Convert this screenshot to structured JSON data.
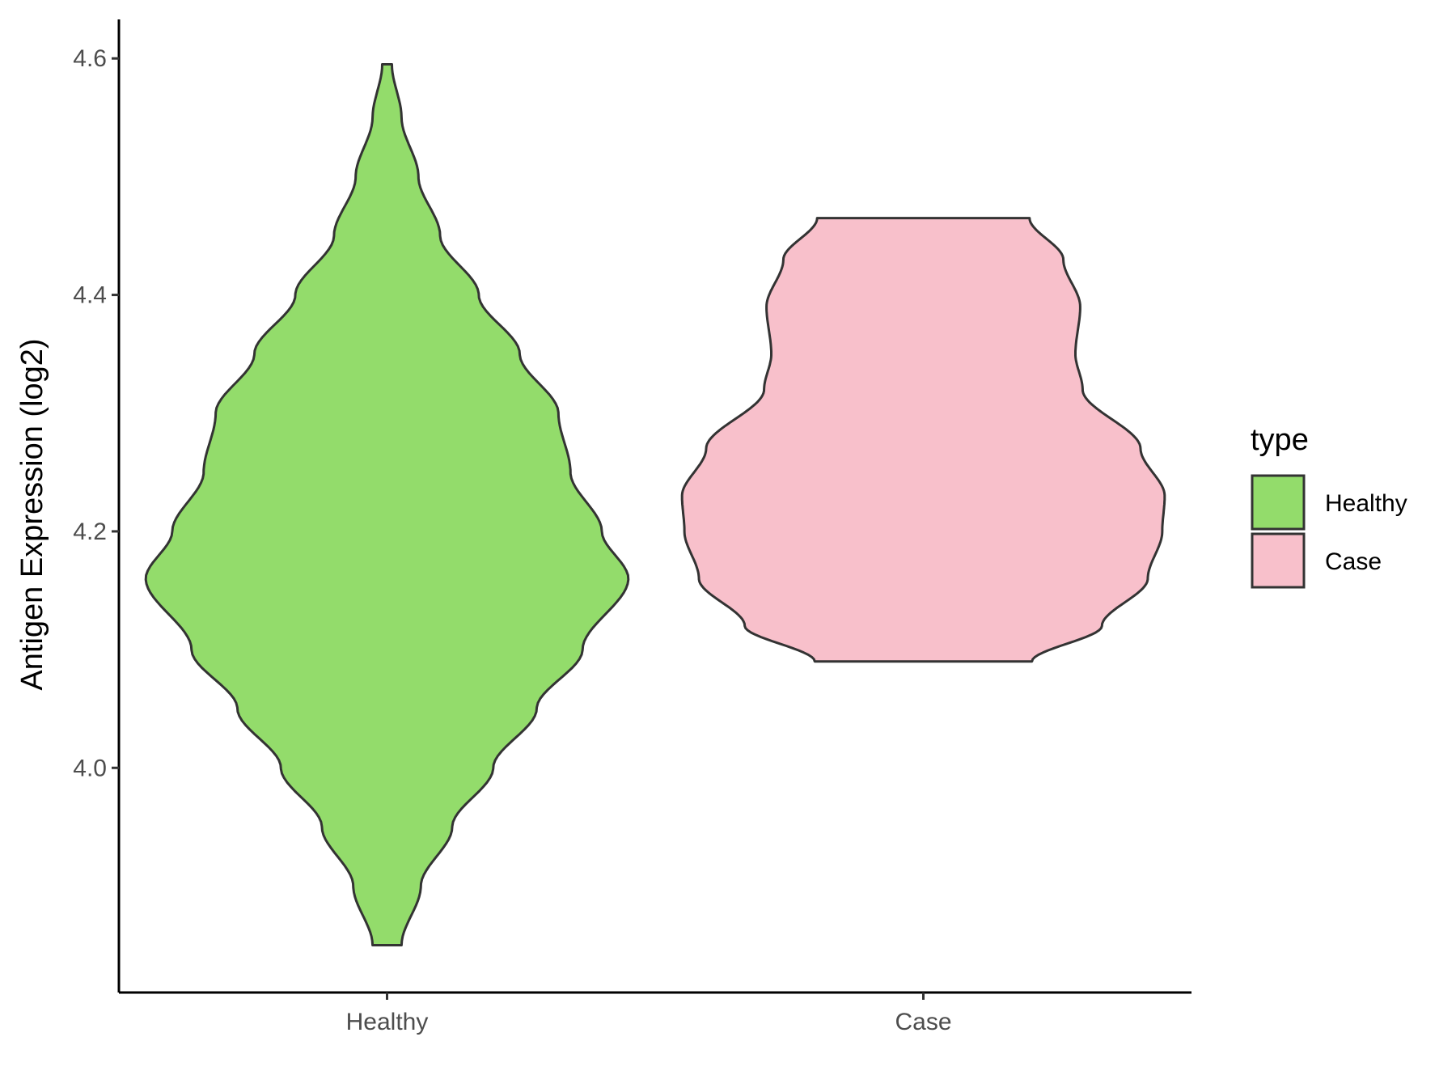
{
  "chart_data": {
    "type": "violin",
    "ylabel": "Antigen Expression (log2)",
    "xlabel": "",
    "categories": [
      "Healthy",
      "Case"
    ],
    "ylim": [
      3.81,
      4.633
    ],
    "yticks": [
      4.0,
      4.2,
      4.4,
      4.6
    ],
    "ytick_labels": [
      "4.0",
      "4.2",
      "4.4",
      "4.6"
    ],
    "grid": false,
    "legend": {
      "title": "type",
      "position": "right",
      "entries": [
        "Healthy",
        "Case"
      ]
    },
    "colors": {
      "Healthy": "#93dc6b",
      "Case": "#f8c0cb",
      "outline": "#333333"
    },
    "series": [
      {
        "name": "Healthy",
        "y_range": [
          3.85,
          4.595
        ],
        "density_profile": [
          [
            3.85,
            0.06
          ],
          [
            3.9,
            0.14
          ],
          [
            3.95,
            0.27
          ],
          [
            4.0,
            0.44
          ],
          [
            4.05,
            0.62
          ],
          [
            4.1,
            0.81
          ],
          [
            4.16,
            1.0
          ],
          [
            4.2,
            0.89
          ],
          [
            4.25,
            0.76
          ],
          [
            4.3,
            0.71
          ],
          [
            4.35,
            0.55
          ],
          [
            4.4,
            0.38
          ],
          [
            4.45,
            0.22
          ],
          [
            4.5,
            0.13
          ],
          [
            4.55,
            0.06
          ],
          [
            4.595,
            0.02
          ]
        ]
      },
      {
        "name": "Case",
        "y_range": [
          4.09,
          4.465
        ],
        "density_profile": [
          [
            4.09,
            0.45
          ],
          [
            4.12,
            0.74
          ],
          [
            4.16,
            0.93
          ],
          [
            4.2,
            0.99
          ],
          [
            4.23,
            1.0
          ],
          [
            4.27,
            0.9
          ],
          [
            4.32,
            0.66
          ],
          [
            4.35,
            0.63
          ],
          [
            4.39,
            0.65
          ],
          [
            4.43,
            0.58
          ],
          [
            4.465,
            0.44
          ]
        ]
      }
    ]
  }
}
